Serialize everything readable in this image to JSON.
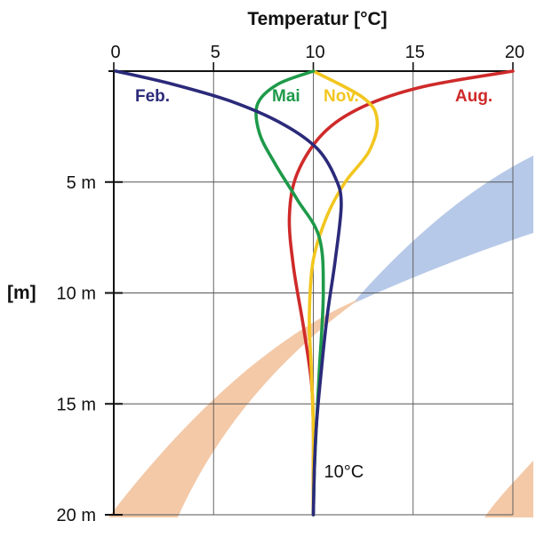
{
  "chart_data": {
    "type": "line",
    "title": "Temperatur [°C]",
    "xlabel": "Temperatur [°C]",
    "ylabel": "[m]",
    "xlim": [
      0,
      20
    ],
    "ylim": [
      0,
      20
    ],
    "y_inverted": true,
    "x_axis_position": "top",
    "grid": true,
    "x_ticks": [
      0,
      5,
      10,
      15,
      20
    ],
    "x_tick_labels": [
      "0",
      "5",
      "10",
      "15",
      "20"
    ],
    "y_ticks": [
      5,
      10,
      15,
      20
    ],
    "y_tick_labels": [
      "5 m",
      "10 m",
      "15 m",
      "20 m"
    ],
    "series": [
      {
        "name": "Feb.",
        "color": "#2b2a7a",
        "points": [
          [
            0.1,
            0
          ],
          [
            3,
            0.6
          ],
          [
            6,
            1.4
          ],
          [
            8.5,
            2.4
          ],
          [
            10.2,
            3.5
          ],
          [
            11.1,
            4.8
          ],
          [
            11.4,
            6
          ],
          [
            11.1,
            8.5
          ],
          [
            10.7,
            11
          ],
          [
            10.4,
            13.5
          ],
          [
            10.15,
            16
          ],
          [
            10.05,
            18
          ],
          [
            10,
            20
          ]
        ]
      },
      {
        "name": "Mai",
        "color": "#1e9a4a",
        "points": [
          [
            10,
            0
          ],
          [
            8.2,
            0.6
          ],
          [
            7.2,
            1.5
          ],
          [
            7.3,
            2.8
          ],
          [
            8.1,
            4.2
          ],
          [
            9.2,
            5.8
          ],
          [
            10.3,
            7.5
          ],
          [
            10.5,
            10
          ],
          [
            10.3,
            13.5
          ],
          [
            10.15,
            16
          ],
          [
            10.05,
            18
          ],
          [
            10,
            20
          ]
        ]
      },
      {
        "name": "Nov.",
        "color": "#f2c61f",
        "points": [
          [
            10,
            0
          ],
          [
            12.5,
            1.2
          ],
          [
            13.2,
            2.2
          ],
          [
            12.8,
            3.6
          ],
          [
            11.6,
            5
          ],
          [
            10.7,
            6.5
          ],
          [
            10.0,
            8.5
          ],
          [
            9.8,
            11
          ],
          [
            9.9,
            13.5
          ],
          [
            10.0,
            16
          ],
          [
            10.0,
            18
          ],
          [
            10,
            20
          ]
        ]
      },
      {
        "name": "Aug.",
        "color": "#cf2a2a",
        "points": [
          [
            20,
            0
          ],
          [
            15.5,
            0.7
          ],
          [
            12.5,
            1.6
          ],
          [
            10.5,
            2.8
          ],
          [
            9.2,
            4.6
          ],
          [
            8.8,
            6.5
          ],
          [
            9.0,
            8.8
          ],
          [
            9.5,
            11.5
          ],
          [
            9.9,
            14
          ],
          [
            10.0,
            16
          ],
          [
            10.0,
            18
          ],
          [
            10,
            20
          ]
        ]
      }
    ],
    "annotations": [
      {
        "text": "10°C",
        "x": 10,
        "y": 18
      }
    ],
    "background_bands": [
      {
        "name": "blue-band",
        "color": "#b7c9e8"
      },
      {
        "name": "peach-band-upper",
        "color": "#f3c9a8"
      },
      {
        "name": "peach-band-lower",
        "color": "#f3c9a8"
      }
    ]
  }
}
